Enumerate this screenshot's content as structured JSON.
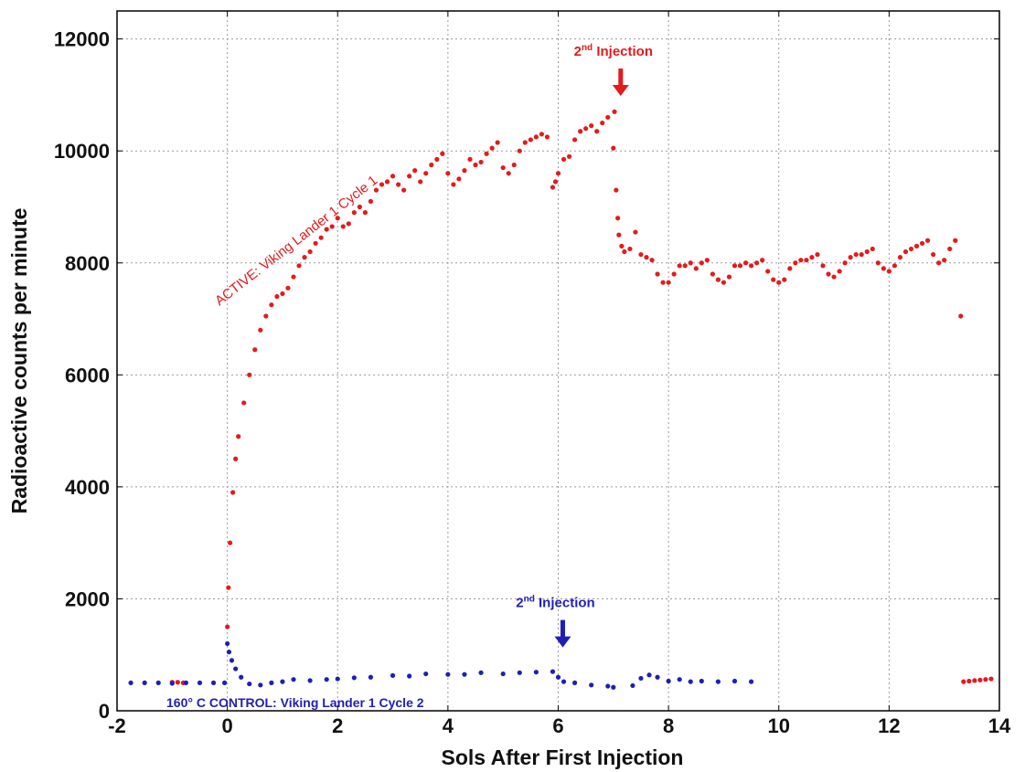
{
  "chart_data": {
    "type": "scatter",
    "xlabel": "Sols After First Injection",
    "ylabel": "Radioactive counts per minute",
    "xlim": [
      -2,
      14
    ],
    "ylim": [
      0,
      12500
    ],
    "x_ticks": [
      "-2",
      "0",
      "2",
      "4",
      "6",
      "8",
      "10",
      "12",
      "14"
    ],
    "y_ticks": [
      "0",
      "2000",
      "4000",
      "6000",
      "8000",
      "10000",
      "12000"
    ],
    "grid": true,
    "series": [
      {
        "name": "ACTIVE: Viking Lander 1 Cycle 1",
        "color": "#e41a1c",
        "points": [
          [
            -1.0,
            510
          ],
          [
            -0.9,
            510
          ],
          [
            -0.8,
            500
          ],
          [
            0.0,
            1500
          ],
          [
            0.02,
            2200
          ],
          [
            0.05,
            3000
          ],
          [
            0.1,
            3900
          ],
          [
            0.15,
            4500
          ],
          [
            0.2,
            4900
          ],
          [
            0.3,
            5500
          ],
          [
            0.4,
            6000
          ],
          [
            0.5,
            6450
          ],
          [
            0.6,
            6800
          ],
          [
            0.7,
            7050
          ],
          [
            0.8,
            7250
          ],
          [
            0.9,
            7400
          ],
          [
            1.0,
            7450
          ],
          [
            1.1,
            7550
          ],
          [
            1.2,
            7750
          ],
          [
            1.3,
            7950
          ],
          [
            1.4,
            8100
          ],
          [
            1.5,
            8200
          ],
          [
            1.6,
            8350
          ],
          [
            1.7,
            8450
          ],
          [
            1.8,
            8600
          ],
          [
            1.9,
            8650
          ],
          [
            2.0,
            8800
          ],
          [
            2.1,
            8650
          ],
          [
            2.2,
            8700
          ],
          [
            2.3,
            8900
          ],
          [
            2.4,
            9000
          ],
          [
            2.5,
            8900
          ],
          [
            2.6,
            9100
          ],
          [
            2.7,
            9300
          ],
          [
            2.8,
            9400
          ],
          [
            2.9,
            9450
          ],
          [
            3.0,
            9550
          ],
          [
            3.1,
            9400
          ],
          [
            3.2,
            9300
          ],
          [
            3.3,
            9550
          ],
          [
            3.4,
            9650
          ],
          [
            3.5,
            9450
          ],
          [
            3.6,
            9600
          ],
          [
            3.7,
            9750
          ],
          [
            3.8,
            9850
          ],
          [
            3.9,
            9950
          ],
          [
            4.0,
            9600
          ],
          [
            4.1,
            9400
          ],
          [
            4.2,
            9500
          ],
          [
            4.3,
            9650
          ],
          [
            4.4,
            9850
          ],
          [
            4.5,
            9750
          ],
          [
            4.6,
            9800
          ],
          [
            4.7,
            9950
          ],
          [
            4.8,
            10050
          ],
          [
            4.9,
            10150
          ],
          [
            5.0,
            9700
          ],
          [
            5.1,
            9600
          ],
          [
            5.2,
            9750
          ],
          [
            5.3,
            10000
          ],
          [
            5.4,
            10150
          ],
          [
            5.5,
            10200
          ],
          [
            5.6,
            10250
          ],
          [
            5.7,
            10300
          ],
          [
            5.8,
            10250
          ],
          [
            5.9,
            9350
          ],
          [
            5.95,
            9450
          ],
          [
            6.0,
            9600
          ],
          [
            6.1,
            9850
          ],
          [
            6.2,
            9900
          ],
          [
            6.3,
            10200
          ],
          [
            6.4,
            10350
          ],
          [
            6.5,
            10400
          ],
          [
            6.6,
            10450
          ],
          [
            6.7,
            10350
          ],
          [
            6.8,
            10500
          ],
          [
            6.9,
            10600
          ],
          [
            7.0,
            10050
          ],
          [
            7.02,
            10700
          ],
          [
            7.05,
            9300
          ],
          [
            7.08,
            8800
          ],
          [
            7.1,
            8500
          ],
          [
            7.15,
            8300
          ],
          [
            7.2,
            8200
          ],
          [
            7.3,
            8250
          ],
          [
            7.4,
            8550
          ],
          [
            7.5,
            8150
          ],
          [
            7.6,
            8100
          ],
          [
            7.7,
            8050
          ],
          [
            7.8,
            7800
          ],
          [
            7.9,
            7650
          ],
          [
            8.0,
            7650
          ],
          [
            8.1,
            7800
          ],
          [
            8.2,
            7950
          ],
          [
            8.3,
            7950
          ],
          [
            8.4,
            8000
          ],
          [
            8.5,
            7900
          ],
          [
            8.6,
            8000
          ],
          [
            8.7,
            8050
          ],
          [
            8.8,
            7800
          ],
          [
            8.9,
            7700
          ],
          [
            9.0,
            7650
          ],
          [
            9.1,
            7750
          ],
          [
            9.2,
            7950
          ],
          [
            9.3,
            7950
          ],
          [
            9.4,
            8000
          ],
          [
            9.5,
            7950
          ],
          [
            9.6,
            8000
          ],
          [
            9.7,
            8050
          ],
          [
            9.8,
            7850
          ],
          [
            9.9,
            7700
          ],
          [
            10.0,
            7650
          ],
          [
            10.1,
            7700
          ],
          [
            10.2,
            7900
          ],
          [
            10.3,
            8000
          ],
          [
            10.4,
            8050
          ],
          [
            10.5,
            8050
          ],
          [
            10.6,
            8100
          ],
          [
            10.7,
            8150
          ],
          [
            10.8,
            7950
          ],
          [
            10.9,
            7800
          ],
          [
            11.0,
            7750
          ],
          [
            11.1,
            7850
          ],
          [
            11.2,
            8000
          ],
          [
            11.3,
            8100
          ],
          [
            11.4,
            8150
          ],
          [
            11.5,
            8150
          ],
          [
            11.6,
            8200
          ],
          [
            11.7,
            8250
          ],
          [
            11.8,
            8000
          ],
          [
            11.9,
            7900
          ],
          [
            12.0,
            7850
          ],
          [
            12.1,
            7950
          ],
          [
            12.2,
            8100
          ],
          [
            12.3,
            8200
          ],
          [
            12.4,
            8250
          ],
          [
            12.5,
            8300
          ],
          [
            12.6,
            8350
          ],
          [
            12.7,
            8400
          ],
          [
            12.8,
            8150
          ],
          [
            12.9,
            8000
          ],
          [
            13.0,
            8050
          ],
          [
            13.1,
            8250
          ],
          [
            13.2,
            8400
          ],
          [
            13.3,
            7050
          ],
          [
            13.35,
            520
          ],
          [
            13.45,
            530
          ],
          [
            13.55,
            540
          ],
          [
            13.65,
            550
          ],
          [
            13.75,
            560
          ],
          [
            13.85,
            570
          ]
        ]
      },
      {
        "name": "160° C CONTROL: Viking Lander 1 Cycle 2",
        "color": "#1f1fb4",
        "points": [
          [
            -1.75,
            500
          ],
          [
            -1.5,
            500
          ],
          [
            -1.25,
            500
          ],
          [
            -1.0,
            490
          ],
          [
            -0.75,
            500
          ],
          [
            -0.5,
            500
          ],
          [
            -0.25,
            500
          ],
          [
            -0.05,
            500
          ],
          [
            0.0,
            1200
          ],
          [
            0.03,
            1050
          ],
          [
            0.08,
            900
          ],
          [
            0.15,
            750
          ],
          [
            0.25,
            600
          ],
          [
            0.4,
            480
          ],
          [
            0.6,
            460
          ],
          [
            0.8,
            500
          ],
          [
            1.0,
            520
          ],
          [
            1.2,
            560
          ],
          [
            1.5,
            540
          ],
          [
            1.8,
            560
          ],
          [
            2.0,
            570
          ],
          [
            2.3,
            590
          ],
          [
            2.6,
            600
          ],
          [
            3.0,
            630
          ],
          [
            3.3,
            620
          ],
          [
            3.6,
            660
          ],
          [
            4.0,
            650
          ],
          [
            4.3,
            650
          ],
          [
            4.6,
            680
          ],
          [
            5.0,
            660
          ],
          [
            5.3,
            680
          ],
          [
            5.6,
            690
          ],
          [
            5.9,
            700
          ],
          [
            6.0,
            600
          ],
          [
            6.1,
            520
          ],
          [
            6.3,
            500
          ],
          [
            6.6,
            460
          ],
          [
            6.9,
            440
          ],
          [
            7.0,
            420
          ],
          [
            7.35,
            450
          ],
          [
            7.5,
            580
          ],
          [
            7.65,
            640
          ],
          [
            7.8,
            600
          ],
          [
            8.0,
            530
          ],
          [
            8.2,
            560
          ],
          [
            8.4,
            520
          ],
          [
            8.6,
            530
          ],
          [
            8.9,
            520
          ],
          [
            9.2,
            530
          ],
          [
            9.5,
            520
          ]
        ]
      }
    ],
    "annotations": [
      {
        "sup": "nd",
        "label": "Injection",
        "prefix": "2",
        "x": 7.0,
        "y": 11700,
        "color": "#e41a1c"
      },
      {
        "sup": "nd",
        "label": "Injection",
        "prefix": "2",
        "x": 5.95,
        "y": 1850,
        "color": "#1f1fb4"
      }
    ]
  }
}
